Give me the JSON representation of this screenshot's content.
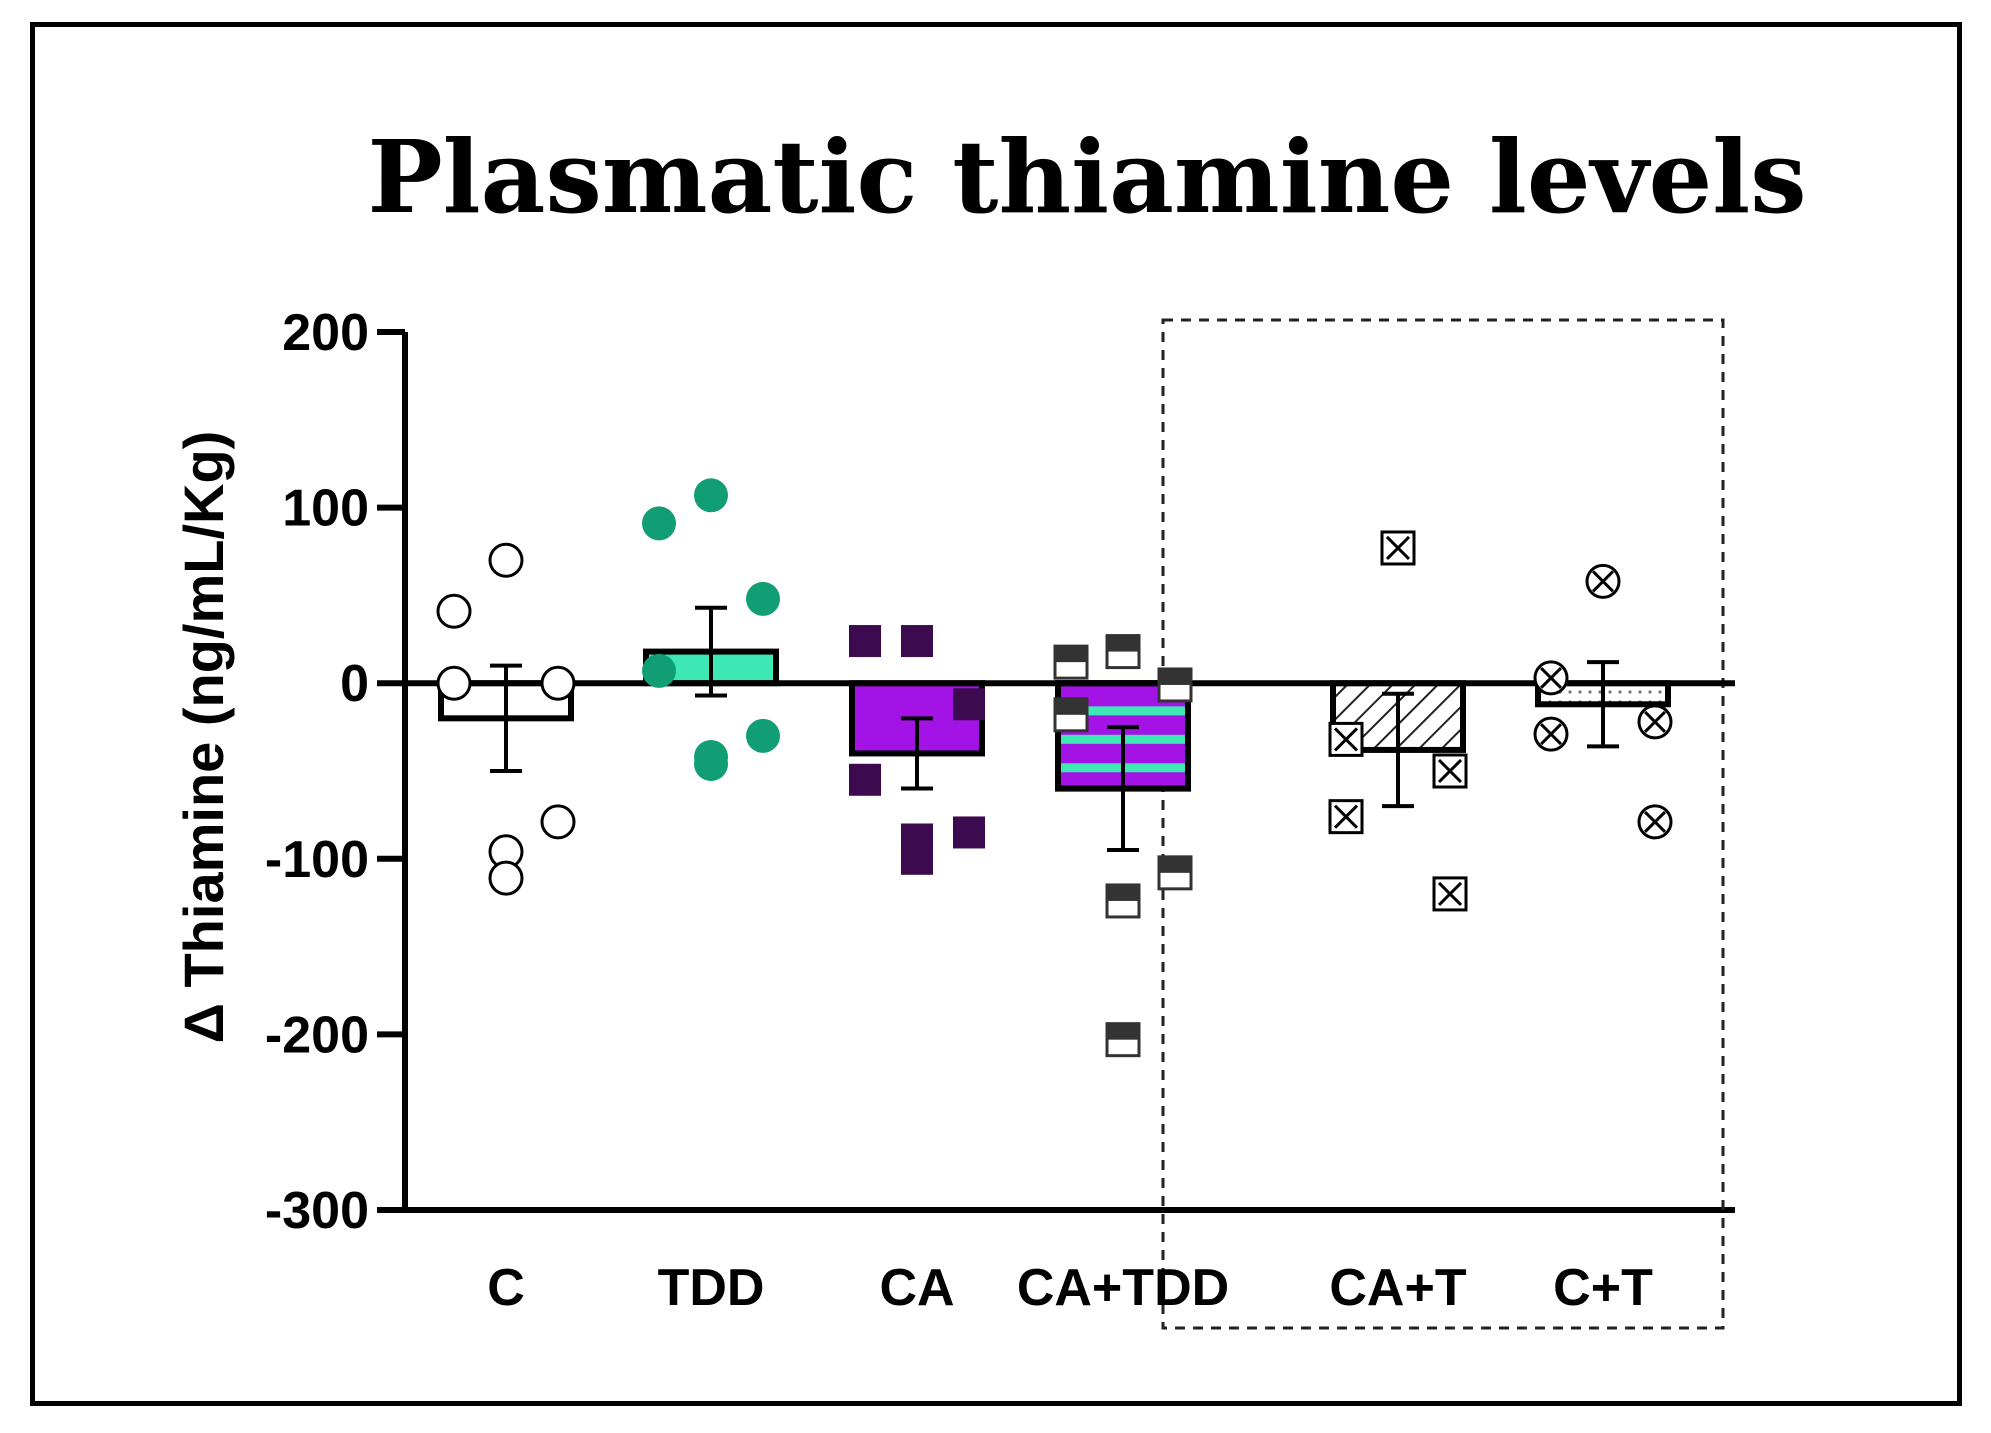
{
  "chart_data": {
    "type": "bar",
    "title": "Plasmatic thiamine levels",
    "ylabel": "Δ Thiamine (ng/mL/Kg)",
    "xlabel": "",
    "ylim": [
      -300,
      200
    ],
    "yticks": [
      200,
      100,
      0,
      -100,
      -200,
      -300
    ],
    "ytick_labels": [
      "200",
      "100",
      "0",
      "-100",
      "-200",
      "-300"
    ],
    "categories": [
      "C",
      "TDD",
      "CA",
      "CA+TDD",
      "CA+T",
      "C+T"
    ],
    "values": [
      -20,
      18,
      -40,
      -60,
      -38,
      -12
    ],
    "sem": [
      30,
      25,
      20,
      35,
      32,
      24
    ],
    "points": [
      [
        70,
        41,
        0,
        0,
        -79,
        -96,
        -111
      ],
      [
        107,
        91,
        48,
        7,
        -30,
        -42,
        -46
      ],
      [
        24,
        24,
        -12,
        -55,
        -85,
        -89,
        -100
      ],
      [
        18,
        12,
        -1,
        -18,
        -108,
        -124,
        -203
      ],
      [
        77,
        -32,
        -50,
        -76,
        -120
      ],
      [
        58,
        3,
        -22,
        -29,
        -79
      ]
    ],
    "styles": [
      {
        "fill": "#ffffff",
        "marker": "open-circle",
        "pattern": "none"
      },
      {
        "fill": "#3ee8b5",
        "marker": "filled-circle",
        "pattern": "none",
        "marker_color": "#129e74"
      },
      {
        "fill": "#a313e6",
        "marker": "filled-square",
        "pattern": "none",
        "marker_color": "#3b0a4f"
      },
      {
        "fill": "#a313e6",
        "marker": "half-square",
        "pattern": "stripes",
        "stripe_color": "#3ee8b5",
        "marker_color": "#333333"
      },
      {
        "fill": "#ffffff",
        "marker": "boxed-x",
        "pattern": "diagonal-hatch"
      },
      {
        "fill": "#ffffff",
        "marker": "circled-x",
        "pattern": "dots"
      }
    ],
    "highlight_box_categories": [
      "CA+T",
      "C+T"
    ],
    "box_style": "dashed",
    "legend": "none",
    "grid": false
  }
}
